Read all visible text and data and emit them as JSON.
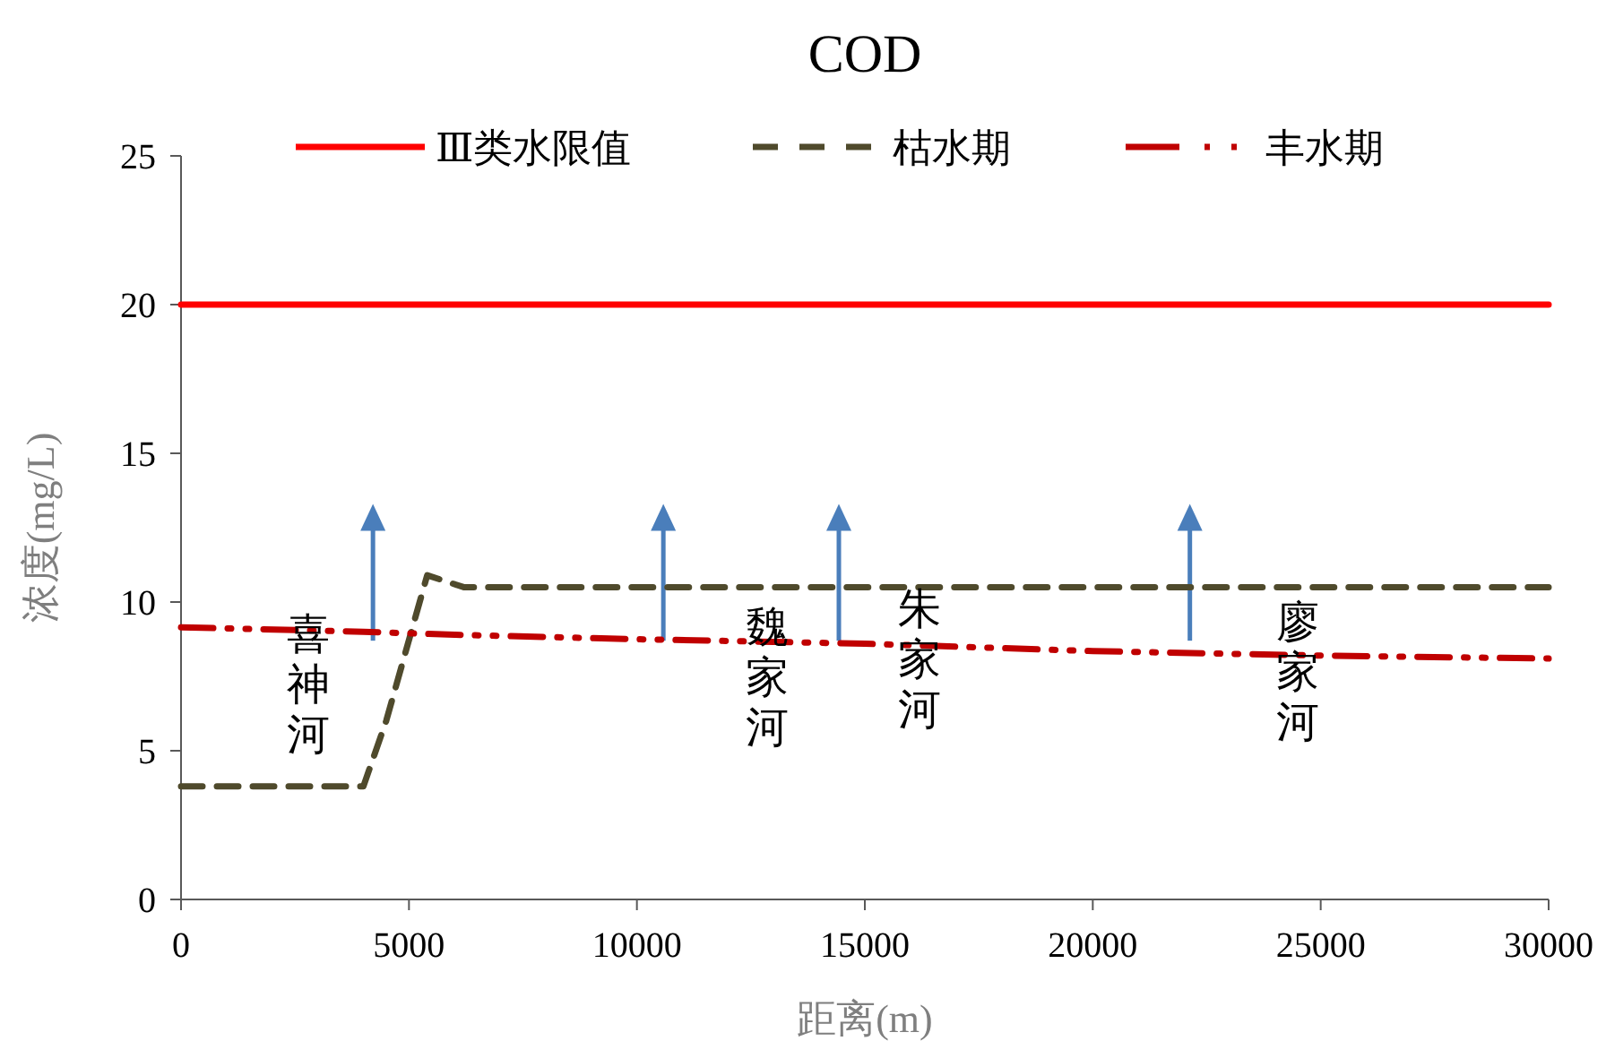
{
  "chart_data": {
    "type": "line",
    "title": "COD",
    "xlabel": "距离(m)",
    "ylabel": "浓度(mg/L)",
    "xlim": [
      0,
      30000
    ],
    "xticks": [
      0,
      5000,
      10000,
      15000,
      20000,
      25000,
      30000
    ],
    "ylim": [
      0,
      25
    ],
    "yticks": [
      0,
      5,
      10,
      15,
      20,
      25
    ],
    "legend": "top",
    "grid": false,
    "series": [
      {
        "name": "Ⅲ类水限值",
        "color": "#ff0000",
        "line_style": "solid",
        "x": [
          0,
          30000
        ],
        "values": [
          20,
          20
        ]
      },
      {
        "name": "枯水期",
        "color": "#4f4a2c",
        "line_style": "dashed",
        "x": [
          0,
          4000,
          4500,
          5400,
          6200,
          10000,
          15000,
          20000,
          25000,
          30000
        ],
        "values": [
          3.8,
          3.8,
          6,
          10.9,
          10.5,
          10.5,
          10.5,
          10.5,
          10.5,
          10.5
        ]
      },
      {
        "name": "丰水期",
        "color": "#c00000",
        "line_style": "dashdot",
        "x": [
          0,
          4000,
          6000,
          10000,
          15000,
          20000,
          25000,
          30000
        ],
        "values": [
          9.15,
          9.0,
          8.9,
          8.75,
          8.6,
          8.35,
          8.2,
          8.1
        ]
      }
    ],
    "annotations": [
      "喜神河",
      "魏家河",
      "朱家河",
      "廖家河"
    ]
  }
}
